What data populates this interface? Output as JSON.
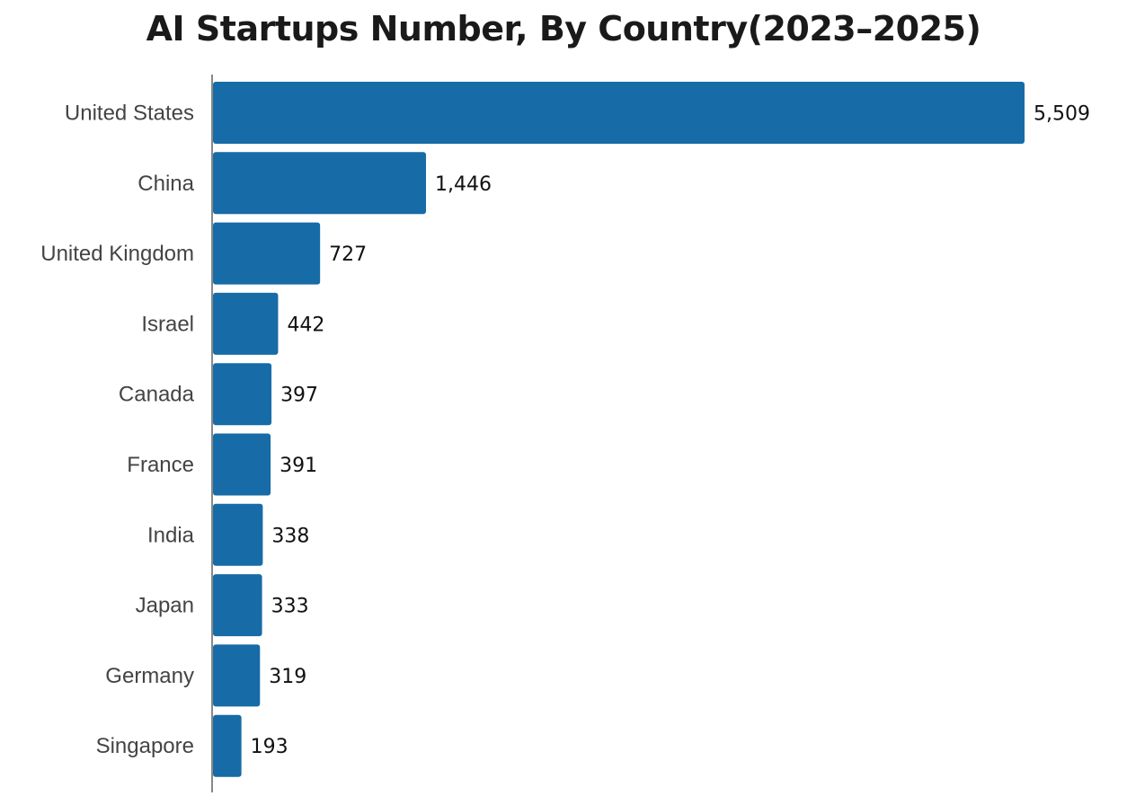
{
  "chart_data": {
    "type": "bar",
    "orientation": "horizontal",
    "title": "AI Startups Number, By Country(2023–2025)",
    "categories": [
      "United States",
      "China",
      "United Kingdom",
      "Israel",
      "Canada",
      "France",
      "India",
      "Japan",
      "Germany",
      "Singapore"
    ],
    "values": [
      5509,
      1446,
      727,
      442,
      397,
      391,
      338,
      333,
      319,
      193
    ],
    "value_labels": [
      "5,509",
      "1,446",
      "727",
      "442",
      "397",
      "391",
      "338",
      "333",
      "319",
      "193"
    ],
    "xlabel": "",
    "ylabel": "",
    "grid": false,
    "colors": {
      "bar": "#176ba6",
      "axis": "#888888"
    }
  }
}
